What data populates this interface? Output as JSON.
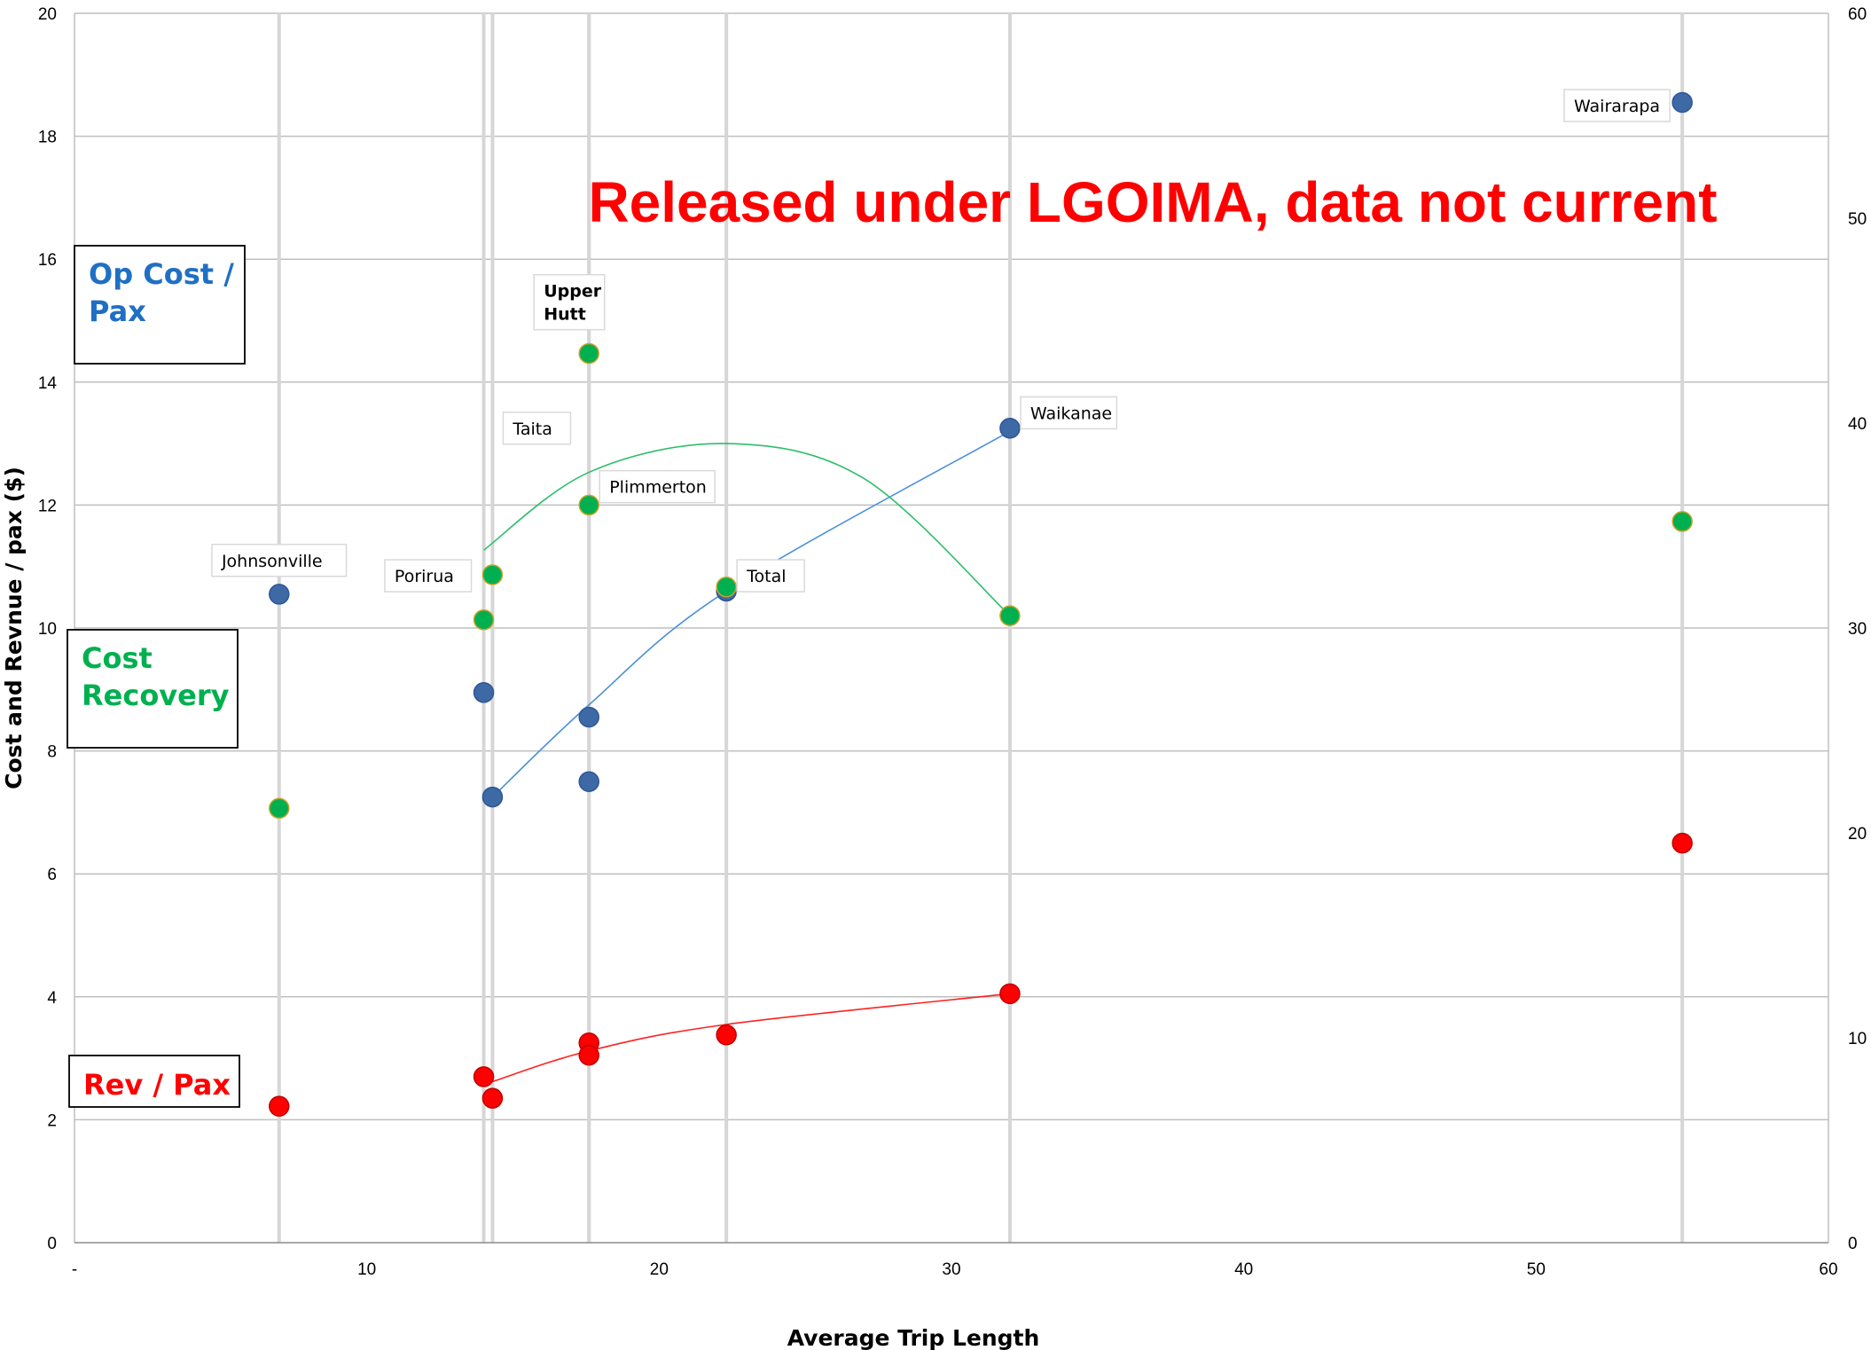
{
  "chart_data": {
    "type": "scatter",
    "watermark": "Released under LGOIMA, data not current",
    "ylabel": "Cost and Revnue / pax ($)",
    "xlabel": "Average Trip Length",
    "xlim": [
      0,
      60
    ],
    "ylim": [
      0,
      20
    ],
    "y2lim": [
      0,
      60
    ],
    "x_ticks": [
      "-",
      "10",
      "20",
      "30",
      "40",
      "50",
      "60"
    ],
    "y_ticks": [
      "0",
      "2",
      "4",
      "6",
      "8",
      "10",
      "12",
      "14",
      "16",
      "18",
      "20"
    ],
    "y2_ticks": [
      "0",
      "10",
      "20",
      "30",
      "40",
      "50",
      "60"
    ],
    "grid": "horizontal",
    "legend": [
      {
        "lines": [
          "Op Cost /",
          "Pax"
        ],
        "color": "#1F6FC5"
      },
      {
        "lines": [
          "Cost",
          "Recovery"
        ],
        "color": "#00B050"
      },
      {
        "lines": [
          "Rev / Pax"
        ],
        "color": "#FF0000"
      }
    ],
    "line_names": [
      "Johnsonville",
      "Porirua",
      "Taita",
      "Upper Hutt",
      "Plimmerton",
      "Total",
      "Waikanae",
      "Wairarapa"
    ],
    "line_x": [
      7,
      14,
      14.3,
      17.6,
      17.6,
      22.3,
      32,
      55
    ],
    "series": [
      {
        "name": "Op Cost / Pax",
        "axis": "left",
        "color": "#3D6AA5",
        "points": [
          [
            7,
            10.55
          ],
          [
            14,
            8.95
          ],
          [
            14.3,
            7.25
          ],
          [
            17.6,
            8.55
          ],
          [
            17.6,
            7.5
          ],
          [
            22.3,
            10.6
          ],
          [
            32,
            13.25
          ],
          [
            55,
            18.55
          ]
        ],
        "trend": [
          [
            14.3,
            7.25
          ],
          [
            17.6,
            8.75
          ],
          [
            22.3,
            10.6
          ],
          [
            32,
            13.2
          ]
        ]
      },
      {
        "name": "Cost Recovery",
        "axis": "right",
        "color": "#00B050",
        "points": [
          [
            7,
            21.2
          ],
          [
            14,
            30.4
          ],
          [
            14.3,
            32.6
          ],
          [
            17.6,
            43.4
          ],
          [
            17.6,
            36.0
          ],
          [
            22.3,
            32.0
          ],
          [
            32,
            30.6
          ],
          [
            55,
            35.2
          ]
        ],
        "trend": [
          [
            14,
            33.8
          ],
          [
            17.6,
            37.6
          ],
          [
            22.3,
            39.0
          ],
          [
            27,
            37.3
          ],
          [
            32,
            30.6
          ]
        ]
      },
      {
        "name": "Rev / Pax",
        "axis": "left",
        "color": "#FF0000",
        "points": [
          [
            7,
            2.22
          ],
          [
            14,
            2.7
          ],
          [
            14.3,
            2.35
          ],
          [
            17.6,
            3.25
          ],
          [
            17.6,
            3.05
          ],
          [
            22.3,
            3.38
          ],
          [
            32,
            4.05
          ],
          [
            55,
            6.5
          ]
        ],
        "trend": [
          [
            14.3,
            2.62
          ],
          [
            17.6,
            3.12
          ],
          [
            22.3,
            3.55
          ],
          [
            32,
            4.05
          ]
        ]
      }
    ],
    "labels": [
      {
        "text": "Johnsonville",
        "x": 7,
        "y": 11.1,
        "anchor": "middle"
      },
      {
        "text": "Porirua",
        "x": 14,
        "y": 10.85,
        "anchor": "end"
      },
      {
        "text": "Taita",
        "x": 14.3,
        "y": 13.25,
        "anchor": "start"
      },
      {
        "text": "Upper Hutt",
        "x": 17.6,
        "y": 15.3,
        "anchor": "start",
        "bold": true
      },
      {
        "text": "Plimmerton",
        "x": 17.6,
        "y": 12.3,
        "anchor": "start"
      },
      {
        "text": "Total",
        "x": 22.3,
        "y": 10.85,
        "anchor": "start"
      },
      {
        "text": "Waikanae",
        "x": 32,
        "y": 13.5,
        "anchor": "start"
      },
      {
        "text": "Wairarapa",
        "x": 55,
        "y": 18.5,
        "anchor": "end"
      }
    ]
  }
}
